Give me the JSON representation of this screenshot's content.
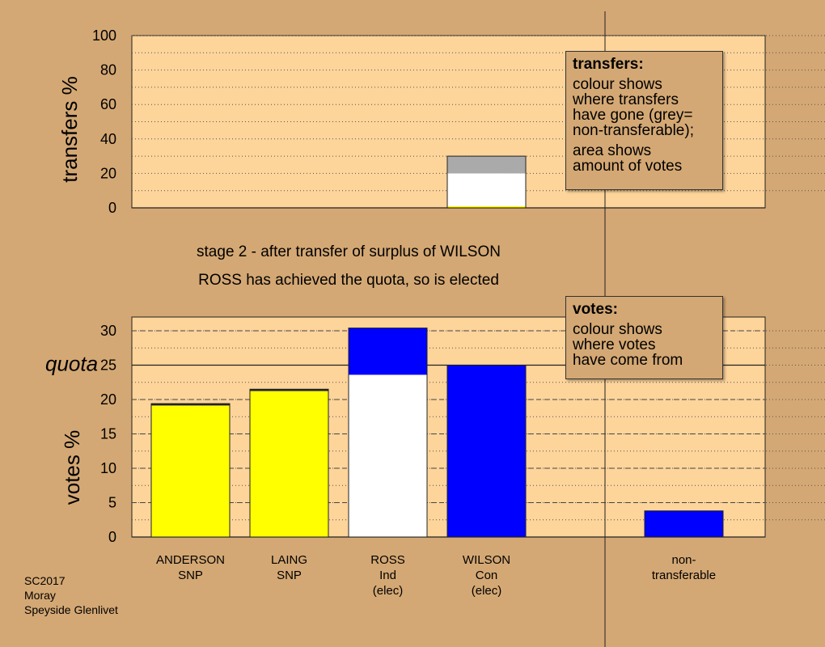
{
  "colors": {
    "page_bg": "#d4a874",
    "plot_bg": "#fdd49a",
    "grid": "#555555",
    "SNP": "#ffff00",
    "Ind": "#ffffff",
    "Con": "#0000ff",
    "nontransferable": "#aaaaaa"
  },
  "info_boxes": {
    "transfers": {
      "heading": "transfers:",
      "lines": [
        "colour shows",
        "where transfers",
        "have gone (grey=",
        "non-transferable);"
      ],
      "lines2": [
        "area shows",
        "amount of votes"
      ]
    },
    "votes": {
      "heading": "votes:",
      "lines": [
        "colour shows",
        "where votes",
        "have come from"
      ]
    }
  },
  "captions": {
    "line1": "stage 2 - after transfer of surplus of WILSON",
    "line2": "ROSS has achieved the quota, so is elected"
  },
  "footer": [
    "SC2017",
    "Moray",
    "Speyside Glenlivet"
  ],
  "chart_data": [
    {
      "type": "bar",
      "name": "transfers",
      "ylabel": "transfers %",
      "ylim": [
        0,
        100
      ],
      "yticks": [
        0,
        20,
        40,
        60,
        80,
        100
      ],
      "grid": true,
      "bars": [
        {
          "column": 3,
          "segments": [
            {
              "party": "SNP",
              "color": "#ffff00",
              "value": 1
            },
            {
              "party": "Ind",
              "color": "#ffffff",
              "value": 19
            },
            {
              "party": "non-transferable",
              "color": "#aaaaaa",
              "value": 10
            }
          ]
        }
      ]
    },
    {
      "type": "bar",
      "name": "votes",
      "ylabel": "votes %",
      "ylim": [
        0,
        32
      ],
      "yticks": [
        0,
        5,
        10,
        15,
        20,
        25,
        30
      ],
      "quota": {
        "label": "quota",
        "value": 25
      },
      "grid": true,
      "categories": [
        {
          "lines": [
            "ANDERSON",
            "SNP"
          ]
        },
        {
          "lines": [
            "LAING",
            "SNP"
          ]
        },
        {
          "lines": [
            "ROSS",
            "Ind",
            "(elec)"
          ]
        },
        {
          "lines": [
            "WILSON",
            "Con",
            "(elec)"
          ]
        },
        {
          "lines": [
            "non-",
            "transferable"
          ]
        }
      ],
      "bars": [
        {
          "column": 0,
          "segments": [
            {
              "color": "#ffff00",
              "value": 19.1
            },
            {
              "color": "#ffff00",
              "value": 0.3
            }
          ]
        },
        {
          "column": 1,
          "segments": [
            {
              "color": "#ffff00",
              "value": 21.2
            },
            {
              "color": "#ffff00",
              "value": 0.3
            }
          ]
        },
        {
          "column": 2,
          "segments": [
            {
              "color": "#ffffff",
              "value": 23.6
            },
            {
              "color": "#0000ff",
              "value": 6.8
            }
          ]
        },
        {
          "column": 3,
          "segments": [
            {
              "color": "#0000ff",
              "value": 25
            }
          ]
        },
        {
          "column": 5,
          "segments": [
            {
              "color": "#0000ff",
              "value": 3.8
            }
          ]
        }
      ]
    }
  ]
}
